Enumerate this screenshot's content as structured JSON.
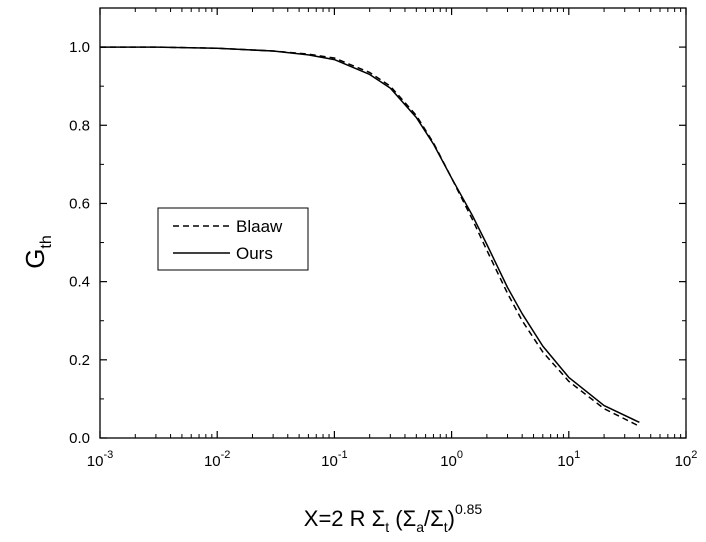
{
  "chart_data": {
    "type": "line",
    "xscale": "log",
    "xlim": [
      0.001,
      100
    ],
    "ylim": [
      0.0,
      1.1
    ],
    "xlabel": {
      "base": "X=2 R ",
      "sigma": "Σ",
      "sub_t": "t",
      "paren_open": " (",
      "sub_a": "a",
      "slash": "/",
      "paren_close": ")",
      "exponent": "0.85"
    },
    "ylabel": {
      "base": "G",
      "sub": "th"
    },
    "x_ticks": [
      {
        "value": 0.001,
        "base": "10",
        "exp": "-3"
      },
      {
        "value": 0.01,
        "base": "10",
        "exp": "-2"
      },
      {
        "value": 0.1,
        "base": "10",
        "exp": "-1"
      },
      {
        "value": 1,
        "base": "10",
        "exp": "0"
      },
      {
        "value": 10,
        "base": "10",
        "exp": "1"
      },
      {
        "value": 100,
        "base": "10",
        "exp": "2"
      }
    ],
    "y_ticks": [
      {
        "value": 0.0,
        "label": "0.0"
      },
      {
        "value": 0.2,
        "label": "0.2"
      },
      {
        "value": 0.4,
        "label": "0.4"
      },
      {
        "value": 0.6,
        "label": "0.6"
      },
      {
        "value": 0.8,
        "label": "0.8"
      },
      {
        "value": 1.0,
        "label": "1.0"
      }
    ],
    "legend_position": "center-left",
    "series": [
      {
        "name": "Blaaw",
        "style": "dashed",
        "color": "#000000",
        "x": [
          0.001,
          0.003,
          0.01,
          0.03,
          0.06,
          0.1,
          0.2,
          0.3,
          0.5,
          0.7,
          1.0,
          1.5,
          2.0,
          3.0,
          4.0,
          6.0,
          10.0,
          20.0,
          40.0
        ],
        "y": [
          1.0,
          1.0,
          0.997,
          0.99,
          0.982,
          0.972,
          0.935,
          0.9,
          0.825,
          0.755,
          0.665,
          0.56,
          0.48,
          0.37,
          0.3,
          0.22,
          0.145,
          0.075,
          0.03
        ]
      },
      {
        "name": "Ours",
        "style": "solid",
        "color": "#000000",
        "x": [
          0.001,
          0.003,
          0.01,
          0.03,
          0.06,
          0.1,
          0.2,
          0.3,
          0.5,
          0.7,
          1.0,
          1.5,
          2.0,
          3.0,
          4.0,
          6.0,
          10.0,
          20.0,
          40.0
        ],
        "y": [
          1.0,
          1.0,
          0.997,
          0.99,
          0.98,
          0.968,
          0.93,
          0.895,
          0.82,
          0.752,
          0.665,
          0.57,
          0.495,
          0.385,
          0.318,
          0.235,
          0.155,
          0.083,
          0.04
        ]
      }
    ]
  }
}
